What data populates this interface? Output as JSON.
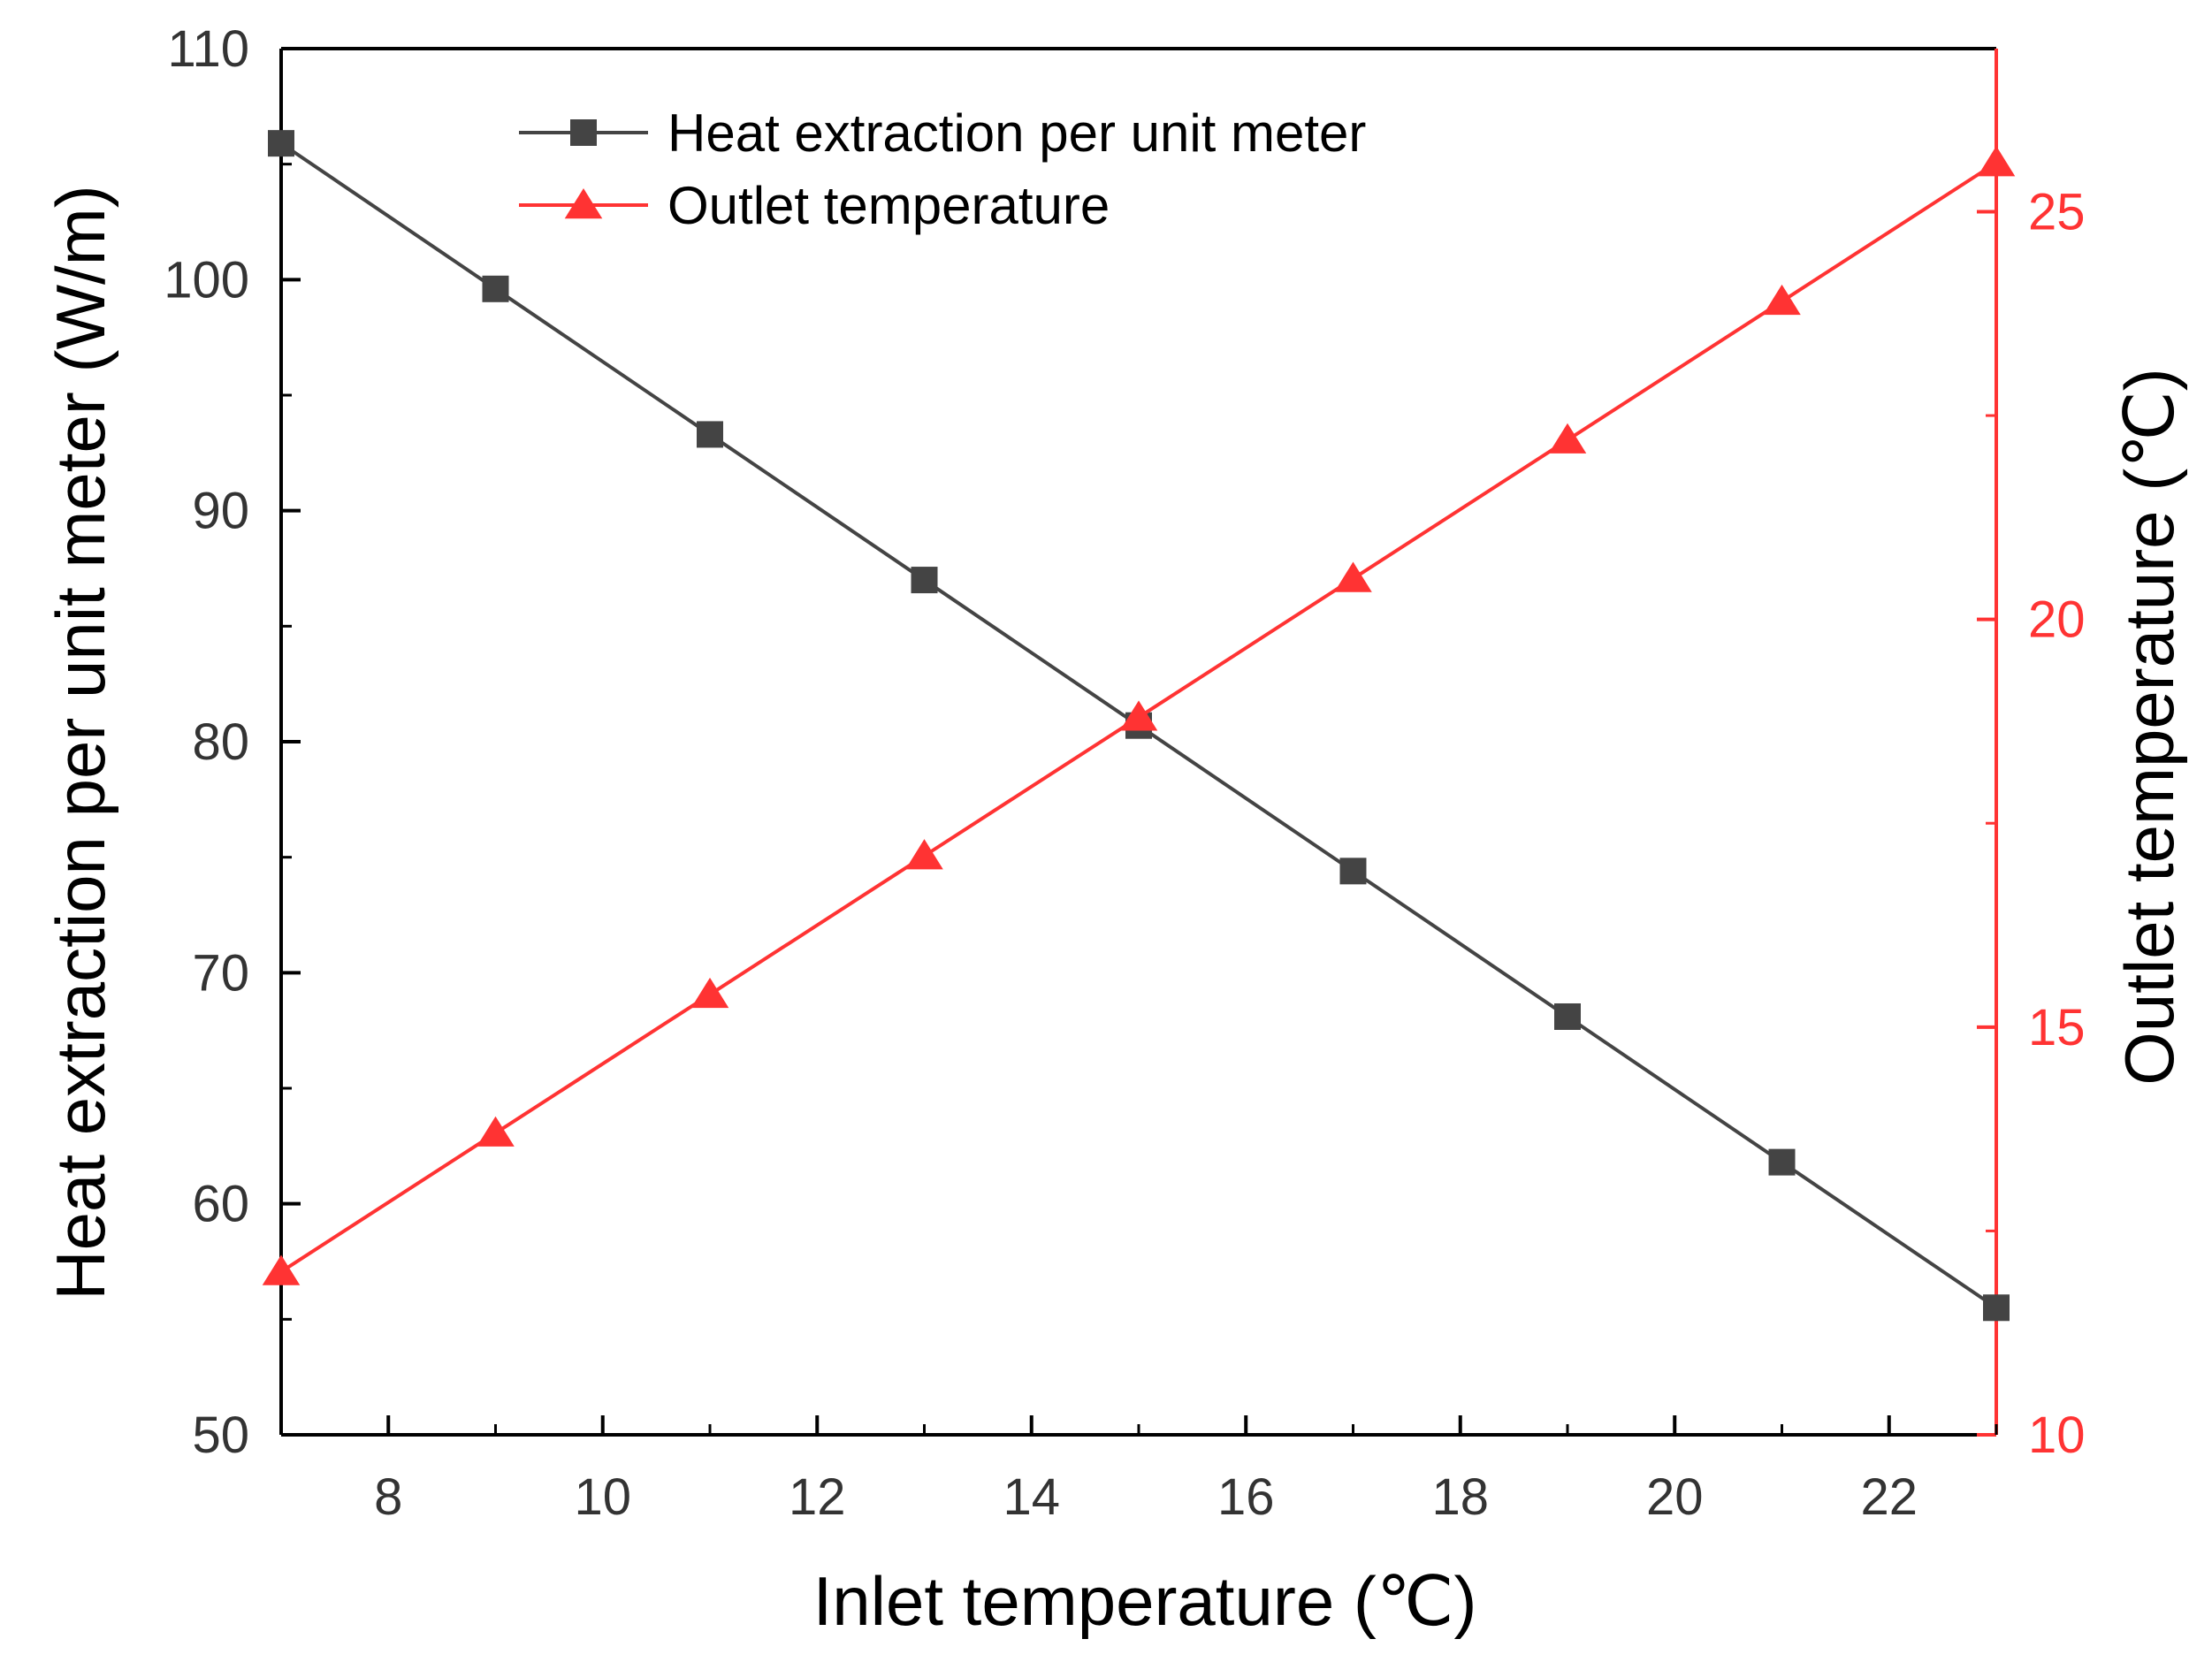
{
  "chart_data": {
    "type": "line",
    "xlabel": "Inlet temperature (℃)",
    "ylabel_left": "Heat extraction per unit meter (W/m)",
    "ylabel_right": "Outlet temperature (℃)",
    "x": [
      7,
      9,
      11,
      13,
      15,
      17,
      19,
      21,
      23
    ],
    "xlim": [
      7,
      23
    ],
    "x_ticks": [
      8,
      10,
      12,
      14,
      16,
      18,
      20,
      22
    ],
    "ylim_left": [
      50,
      110
    ],
    "y_ticks_left": [
      50,
      60,
      70,
      80,
      90,
      100,
      110
    ],
    "ylim_right": [
      10,
      27
    ],
    "y_ticks_right": [
      10,
      15,
      20,
      25
    ],
    "series": [
      {
        "name": "Heat extraction per unit meter",
        "axis": "left",
        "marker": "square",
        "color": "#444444",
        "values": [
          105.9,
          99.6,
          93.3,
          87.0,
          80.7,
          74.4,
          68.1,
          61.8,
          55.5
        ]
      },
      {
        "name": "Outlet temperature",
        "axis": "right",
        "marker": "triangle",
        "color": "#ff3333",
        "values": [
          12.0,
          13.7,
          15.4,
          17.1,
          18.8,
          20.5,
          22.2,
          23.9,
          25.6
        ]
      }
    ],
    "legend_position": "top-left",
    "grid": false
  }
}
